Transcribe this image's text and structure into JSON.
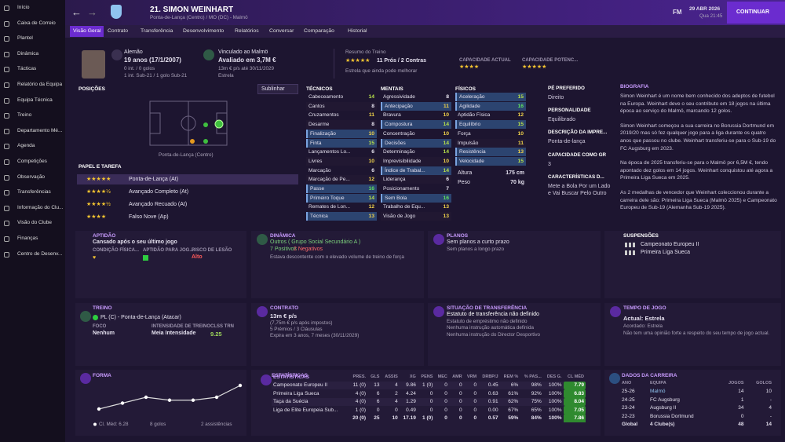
{
  "sidebar": [
    "Início",
    "Caixa de Correio",
    "Plantel",
    "Dinâmica",
    "Tácticas",
    "Relatório da Equipa",
    "Equipa Técnica",
    "Treino",
    "Departamento Mé...",
    "Agenda",
    "Competições",
    "Observação",
    "Transferências",
    "Informação do Clu...",
    "Visão do Clube",
    "Finanças",
    "Centro de Desenv..."
  ],
  "header": {
    "title": "21. SIMON WEINHART",
    "subtitle": "Ponta-de-Lança (Centro) / MO (DC) - Malmö",
    "date": "29 ABR 2026",
    "weekday_time": "Qua 21:45",
    "fm": "FM",
    "continue": "CONTINUAR"
  },
  "tabs": [
    "Visão Geral",
    "Contrato",
    "Transferência",
    "Desenvolvimento",
    "Relatórios",
    "Conversar",
    "Comparação",
    "Historial"
  ],
  "profile": {
    "nationality": "Alemão",
    "age": "19 anos (17/1/2007)",
    "caps": "0 int. / 0 golos",
    "caps_u21": "1 int. Sub-21 / 1 golo Sub-21",
    "club": "Vinculado ao Malmö",
    "value": "Avaliado em 3,7M €",
    "wage": "13m € p/s até 30/11/2029",
    "status": "Estrela",
    "training_label": "Resumo do Treino",
    "training_summary": "11 Prós / 2 Contras",
    "training_note": "Estrela que ainda pode melhorar",
    "current_ability": "CAPACIDADE ACTUAL",
    "potential_ability": "CAPACIDADE POTENC..."
  },
  "positions": {
    "title": "POSIÇÕES",
    "button": "Sublinhar",
    "pitch_label": "Ponta-de-Lança (Centro)",
    "roles_title": "PAPEL E TAREFA",
    "roles": [
      "Ponta-de-Lança (At)",
      "Avançado Completo (At)",
      "Avançado Recuado (At)",
      "Falso Nove (Ap)"
    ]
  },
  "attributes": {
    "technical_title": "TÉCNICOS",
    "mental_title": "MENTAIS",
    "physical_title": "FÍSICOS",
    "technical": [
      {
        "name": "Cabeceamento",
        "value": 14,
        "key": false
      },
      {
        "name": "Cantos",
        "value": 8,
        "key": false
      },
      {
        "name": "Cruzamentos",
        "value": 11,
        "key": false
      },
      {
        "name": "Desarme",
        "value": 8,
        "key": false
      },
      {
        "name": "Finalização",
        "value": 10,
        "key": true
      },
      {
        "name": "Finta",
        "value": 15,
        "key": true
      },
      {
        "name": "Lançamentos Lo...",
        "value": 6,
        "key": false
      },
      {
        "name": "Livres",
        "value": 10,
        "key": false
      },
      {
        "name": "Marcação",
        "value": 6,
        "key": false
      },
      {
        "name": "Marcação de Pe...",
        "value": 12,
        "key": false
      },
      {
        "name": "Passe",
        "value": 16,
        "key": true
      },
      {
        "name": "Primeiro Toque",
        "value": 14,
        "key": true
      },
      {
        "name": "Remates de Lon...",
        "value": 12,
        "key": false
      },
      {
        "name": "Técnica",
        "value": 13,
        "key": true
      }
    ],
    "mental": [
      {
        "name": "Agressividade",
        "value": 8,
        "key": false
      },
      {
        "name": "Antecipação",
        "value": 11,
        "key": true
      },
      {
        "name": "Bravura",
        "value": 10,
        "key": false
      },
      {
        "name": "Compostura",
        "value": 14,
        "key": true
      },
      {
        "name": "Concentração",
        "value": 10,
        "key": false
      },
      {
        "name": "Decisões",
        "value": 14,
        "key": true
      },
      {
        "name": "Determinação",
        "value": 14,
        "key": false
      },
      {
        "name": "Imprevisibilidade",
        "value": 10,
        "key": false
      },
      {
        "name": "Índice de Trabal...",
        "value": 14,
        "key": true
      },
      {
        "name": "Liderança",
        "value": 6,
        "key": false
      },
      {
        "name": "Posicionamento",
        "value": 7,
        "key": false
      },
      {
        "name": "Sem Bola",
        "value": 16,
        "key": true
      },
      {
        "name": "Trabalho de Equ...",
        "value": 13,
        "key": false
      },
      {
        "name": "Visão de Jogo",
        "value": 13,
        "key": false
      }
    ],
    "physical": [
      {
        "name": "Aceleração",
        "value": 15,
        "key": true
      },
      {
        "name": "Agilidade",
        "value": 16,
        "key": true
      },
      {
        "name": "Aptidão Física",
        "value": 12,
        "key": false
      },
      {
        "name": "Equilíbrio",
        "value": 15,
        "key": true
      },
      {
        "name": "Força",
        "value": 10,
        "key": false
      },
      {
        "name": "Impulsão",
        "value": 11,
        "key": false
      },
      {
        "name": "Resistência",
        "value": 13,
        "key": true
      },
      {
        "name": "Velocidade",
        "value": 15,
        "key": true
      }
    ],
    "height_label": "Altura",
    "height": "175 cm",
    "weight_label": "Peso",
    "weight": "70 kg"
  },
  "info": [
    {
      "label": "PÉ PREFERIDO",
      "value": "Direito"
    },
    {
      "label": "PERSONALIDADE",
      "value": "Equilibrado"
    },
    {
      "label": "DESCRIÇÃO DA IMPRE...",
      "value": "Ponta-de-lança"
    },
    {
      "label": "CAPACIDADE COMO GR",
      "value": "3"
    },
    {
      "label": "CARACTERÍSTICAS D...",
      "value": "Mete a Bola Por um Lado e Vai Buscar Pelo Outro"
    }
  ],
  "biography": {
    "title": "BIOGRAFIA",
    "paragraphs": [
      "Simon Weinhart é um nome bem conhecido dos adeptos de futebol na Europa. Weinhart deve o seu contributo em 18 jogos na última época ao serviço do Malmö, marcando 12 golos.",
      "Simon Weinhart começou a sua carreira no Borussia Dortmund em 2019/20 mas só fez qualquer jogo para a liga durante os quatro anos que passou no clube. Weinhart transferiu-se para o Sub-19 do FC Augsburg em 2023.",
      "Na época de 2025 transferiu-se para o Malmö por 6,5M €, tendo apontado dez golos em 14 jogos. Weinhart conquistou até agora a Primeira Liga Sueca em 2025.",
      "As 2 medalhas de vencedor que Weinhart coleccionou durante a carreira dele são: Primeira Liga Sueca (Malmö 2025) e Campeonato Europeu de Sub-19 (Alemanha Sub-19 2025)."
    ]
  },
  "fitness": {
    "title": "APTIDÃO",
    "summary": "Cansado após o seu último jogo",
    "condition": "CONDIÇÃO FÍSICA...",
    "match_fitness": "APTIDÃO PARA JOG...",
    "injury_risk": "RISCO DE LESÃO",
    "injury_value": "Alto"
  },
  "dynamics": {
    "title": "DINÂMICA",
    "group": "Outros ( Grupo Social Secundário A )",
    "positive": "7 Positivos",
    "negative": "2 Negativos",
    "note": "Estava descontente com o elevado volume de treino de força"
  },
  "plans": {
    "title": "PLANOS",
    "short": "Sem planos a curto prazo",
    "long": "Sem planos a longo prazo"
  },
  "suspensions": {
    "title": "SUSPENSÕES",
    "items": [
      "Campeonato Europeu II",
      "Primeira Liga Sueca"
    ]
  },
  "training": {
    "title": "TREINO",
    "role": "PL (C) - Ponta-de-Lança (Atacar)",
    "focus_label": "FOCO",
    "focus": "Nenhum",
    "intensity_label": "INTENSIDADE DE TREINO",
    "intensity": "Meia Intensidade",
    "rating_label": "CLSS TRN",
    "rating": "9.25"
  },
  "contract": {
    "title": "CONTRATO",
    "wage": "13m € p/s",
    "after_tax": "(7,75m € p/s após impostos)",
    "bonuses": "5 Prémios / 3 Cláusulas",
    "expiry": "Expira em 3 anos, 7 meses (30/11/2029)"
  },
  "transfer": {
    "title": "SITUAÇÃO DE TRANSFERÊNCIA",
    "lines": [
      "Estatuto de transferência não definido",
      "Estatuto de empréstimo não definido",
      "Nenhuma instrução automática definida",
      "Nenhuma instrução do Director Desportivo"
    ]
  },
  "playing_time": {
    "title": "TEMPO DE JOGO",
    "current": "Actual: Estrela",
    "agreed": "Acordado: Estrela",
    "note": "Não tem uma opinião forte a respeito do seu tempo de jogo actual."
  },
  "form": {
    "title": "FORMA",
    "type": "line",
    "values": [
      6.9,
      7.1,
      7.3,
      7.2,
      7.2,
      7.3,
      7.7
    ],
    "average": "Cl. Méd: 6.28",
    "goals": "8 golos",
    "assists": "2 assistências"
  },
  "stats": {
    "title": "ESTATÍSTICAS",
    "headers": [
      "PRES.",
      "GLS",
      "ASSIS",
      "XG",
      "PENS",
      "MEC",
      "AMR",
      "VRM",
      "DRBP/J",
      "REM %",
      "% PAS...",
      "DES G.",
      "CL MÉD"
    ],
    "rows": [
      {
        "competition": "Campeonato Europeu II",
        "cells": [
          "11 (0)",
          "13",
          "4",
          "9.86",
          "1 (0)",
          "0",
          "0",
          "0",
          "0.45",
          "6%",
          "98%",
          "100%",
          "7.79"
        ]
      },
      {
        "competition": "Primeira Liga Sueca",
        "cells": [
          "4 (0)",
          "6",
          "2",
          "4.24",
          "0",
          "0",
          "0",
          "0",
          "0.63",
          "61%",
          "92%",
          "100%",
          "6.83"
        ]
      },
      {
        "competition": "Taça da Suécia",
        "cells": [
          "4 (0)",
          "6",
          "4",
          "1.29",
          "0",
          "0",
          "0",
          "0",
          "0.91",
          "62%",
          "75%",
          "100%",
          "8.04"
        ]
      },
      {
        "competition": "Liga de Elite Europeia Sub...",
        "cells": [
          "1 (0)",
          "0",
          "0",
          "0.49",
          "0",
          "0",
          "0",
          "0",
          "0.00",
          "67%",
          "65%",
          "100%",
          "7.05"
        ]
      }
    ],
    "total": [
      "20 (0)",
      "25",
      "10",
      "17.19",
      "1 (0)",
      "0",
      "0",
      "0",
      "0.57",
      "59%",
      "84%",
      "100%",
      "7.86"
    ]
  },
  "career": {
    "title": "DADOS DA CARREIRA",
    "headers": [
      "ANO",
      "EQUIPA",
      "JOGOS",
      "GOLOS"
    ],
    "rows": [
      [
        "25-26",
        "Malmö",
        "14",
        "10"
      ],
      [
        "24-25",
        "FC Augsburg",
        "1",
        "-"
      ],
      [
        "23-24",
        "Augsburg II",
        "34",
        "4"
      ],
      [
        "22-23",
        "Borussia Dortmund",
        "0",
        "-"
      ]
    ],
    "total": [
      "Global",
      "4 Clube(s)",
      "48",
      "14"
    ]
  }
}
